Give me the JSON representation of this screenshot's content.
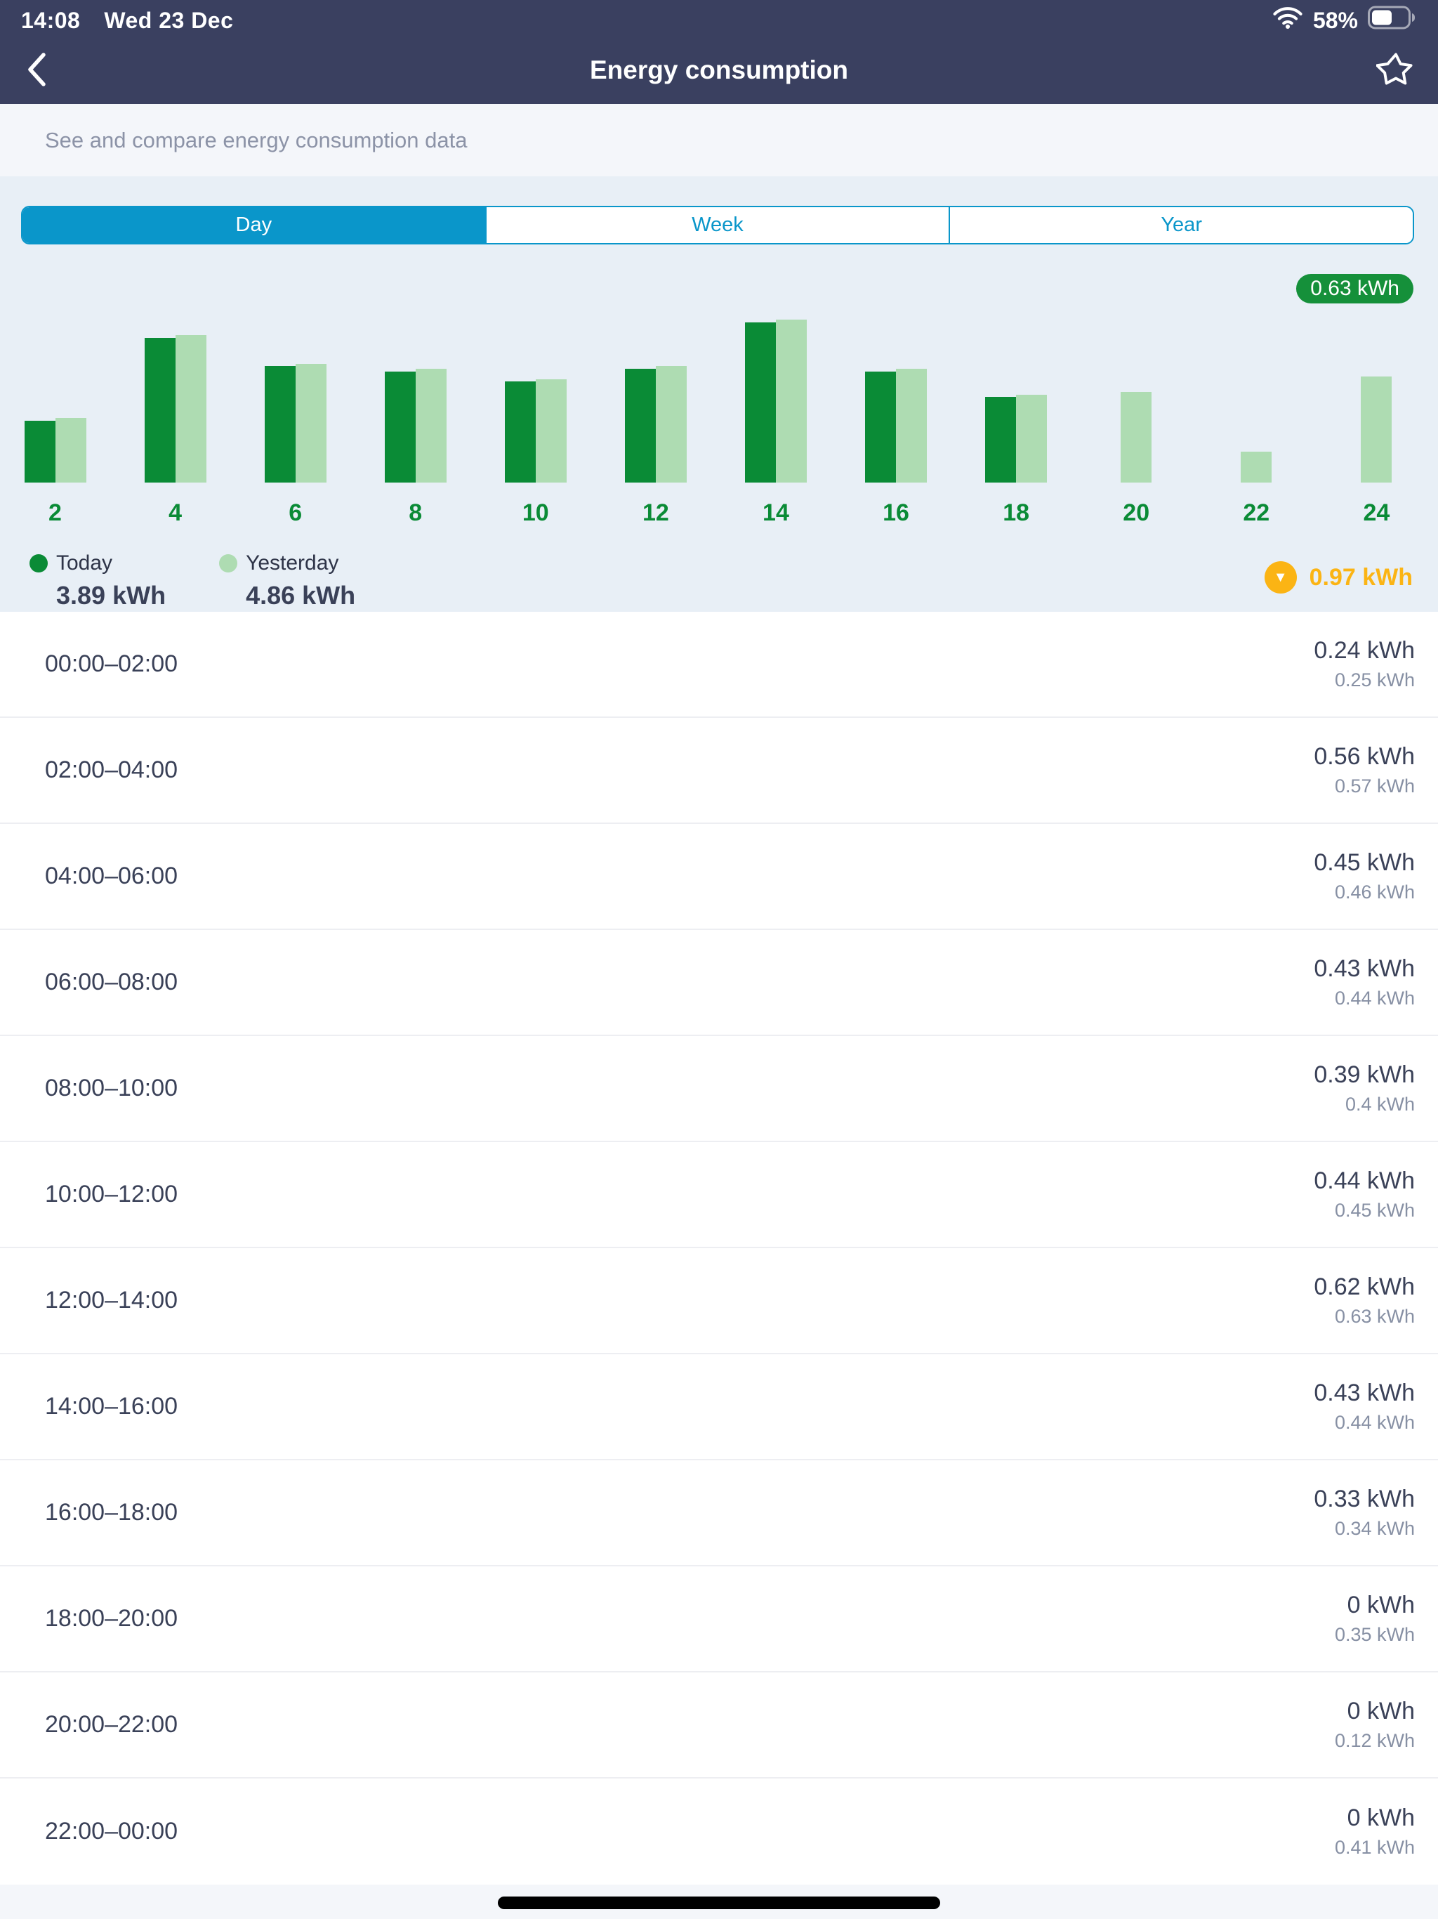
{
  "status_bar": {
    "time": "14:08",
    "date": "Wed 23 Dec",
    "battery_percent": "58%",
    "battery_level": 0.58
  },
  "nav": {
    "title": "Energy consumption"
  },
  "subtitle": "See and compare energy consumption data",
  "tabs": {
    "items": [
      "Day",
      "Week",
      "Year"
    ],
    "selected": "Day"
  },
  "chart_data": {
    "type": "bar",
    "title": "Energy consumption by 2-hour period (kWh)",
    "categories": [
      2,
      4,
      6,
      8,
      10,
      12,
      14,
      16,
      18,
      20,
      22,
      24
    ],
    "series": [
      {
        "name": "Today",
        "color": "#0A8B36",
        "values": [
          0.24,
          0.56,
          0.45,
          0.43,
          0.39,
          0.44,
          0.62,
          0.43,
          0.33,
          0,
          0,
          0
        ]
      },
      {
        "name": "Yesterday",
        "color": "#AEDCB2",
        "values": [
          0.25,
          0.57,
          0.46,
          0.44,
          0.4,
          0.45,
          0.63,
          0.44,
          0.34,
          0.35,
          0.12,
          0.41
        ]
      }
    ],
    "ylim": [
      0,
      0.63
    ],
    "unit": "kWh",
    "grid": false,
    "legend_position": "bottom-left",
    "max_badge": "0.63 kWh",
    "legend": [
      {
        "label": "Today",
        "value": "3.89 kWh"
      },
      {
        "label": "Yesterday",
        "value": "4.86 kWh"
      }
    ],
    "difference": {
      "value": "0.97 kWh",
      "direction": "down"
    }
  },
  "rows": [
    {
      "time": "00:00–02:00",
      "today": "0.24 kWh",
      "yesterday": "0.25 kWh"
    },
    {
      "time": "02:00–04:00",
      "today": "0.56 kWh",
      "yesterday": "0.57 kWh"
    },
    {
      "time": "04:00–06:00",
      "today": "0.45 kWh",
      "yesterday": "0.46 kWh"
    },
    {
      "time": "06:00–08:00",
      "today": "0.43 kWh",
      "yesterday": "0.44 kWh"
    },
    {
      "time": "08:00–10:00",
      "today": "0.39 kWh",
      "yesterday": "0.4 kWh"
    },
    {
      "time": "10:00–12:00",
      "today": "0.44 kWh",
      "yesterday": "0.45 kWh"
    },
    {
      "time": "12:00–14:00",
      "today": "0.62 kWh",
      "yesterday": "0.63 kWh"
    },
    {
      "time": "14:00–16:00",
      "today": "0.43 kWh",
      "yesterday": "0.44 kWh"
    },
    {
      "time": "16:00–18:00",
      "today": "0.33 kWh",
      "yesterday": "0.34 kWh"
    },
    {
      "time": "18:00–20:00",
      "today": "0 kWh",
      "yesterday": "0.35 kWh"
    },
    {
      "time": "20:00–22:00",
      "today": "0 kWh",
      "yesterday": "0.12 kWh"
    },
    {
      "time": "22:00–00:00",
      "today": "0 kWh",
      "yesterday": "0.41 kWh"
    }
  ],
  "colors": {
    "header_navy": "#3A4060",
    "accent_blue": "#0A96CA",
    "dark_green": "#0A8B36",
    "light_green": "#AEDCB2",
    "badge_green": "#15903A",
    "amber": "#FBB414",
    "text_navy": "#3A4158",
    "text_gray": "#8790A4",
    "panel_blue": "#E8EFF6",
    "page_gray": "#F4F6FA"
  }
}
